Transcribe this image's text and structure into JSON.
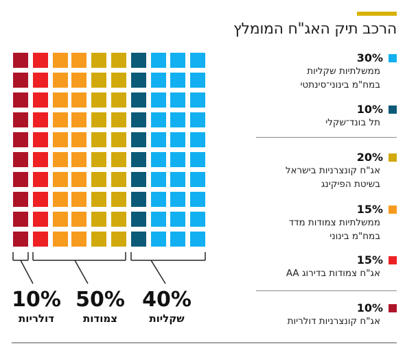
{
  "title": "הרכב תיק האג\"ח המומלץ",
  "colors": {
    "accent": "#d8b200",
    "gov_mixed": "#12b0f0",
    "telbond": "#0b5a78",
    "corporate_israel": "#d1a90c",
    "gov_cpi": "#f79b1e",
    "corporate_aa": "#ed2124",
    "corporate_usd": "#ae1428"
  },
  "legend": [
    {
      "pct": "30%",
      "lines": [
        "ממשלתיות שקליות",
        "במח\"מ בינוני־סינתטי"
      ],
      "color_key": "gov_mixed",
      "swatch": "square-swatch"
    },
    {
      "pct": "10%",
      "lines": [
        "תל בונד־שקלי"
      ],
      "color_key": "telbond",
      "swatch": "square-swatch"
    },
    {
      "pct": "20%",
      "lines": [
        "אג\"ח קונצרניות בישראל",
        "בשיטת הפיקינג"
      ],
      "color_key": "corporate_israel",
      "swatch": "square-swatch"
    },
    {
      "pct": "15%",
      "lines": [
        "ממשלתיות צמודות מדד",
        "במח\"מ בינוני"
      ],
      "color_key": "gov_cpi",
      "swatch": "square-swatch"
    },
    {
      "pct": "15%",
      "lines": [
        "אג\"ח צמודות בדירוג AA"
      ],
      "color_key": "corporate_aa",
      "swatch": "square-swatch"
    },
    {
      "pct": "10%",
      "lines": [
        "אג\"ח קונצרניות דולריות"
      ],
      "color_key": "corporate_usd",
      "swatch": "square-swatch"
    }
  ],
  "groups": [
    {
      "value": "40%",
      "label": "שקליות"
    },
    {
      "value": "50%",
      "label": "צמודות"
    },
    {
      "value": "10%",
      "label": "דולריות"
    }
  ],
  "chart_data": {
    "type": "waffle",
    "rows": 10,
    "columns": 10,
    "title": "הרכב תיק האג\"ח המומלץ",
    "series": [
      {
        "name": "ממשלתיות שקליות במח\"מ בינוני־סינתטי",
        "value": 30,
        "color": "#12b0f0"
      },
      {
        "name": "תל בונד־שקלי",
        "value": 10,
        "color": "#0b5a78"
      },
      {
        "name": "אג\"ח קונצרניות בישראל בשיטת הפיקינג",
        "value": 20,
        "color": "#d1a90c"
      },
      {
        "name": "ממשלתיות צמודות מדד במח\"מ בינוני",
        "value": 15,
        "color": "#f79b1e"
      },
      {
        "name": "אג\"ח צמודות בדירוג AA",
        "value": 15,
        "color": "#ed2124"
      },
      {
        "name": "אג\"ח קונצרניות דולריות",
        "value": 10,
        "color": "#ae1428"
      }
    ],
    "column_order_left_to_right": [
      "#ae1428",
      "#ed2124|#f79b1e",
      "#f79b1e",
      "#d1a90c",
      "#d1a90c",
      "#0b5a78",
      "#12b0f0",
      "#12b0f0",
      "#12b0f0"
    ],
    "groups": [
      {
        "label": "דולריות",
        "value": 10
      },
      {
        "label": "צמודות",
        "value": 50
      },
      {
        "label": "שקליות",
        "value": 40
      }
    ]
  }
}
